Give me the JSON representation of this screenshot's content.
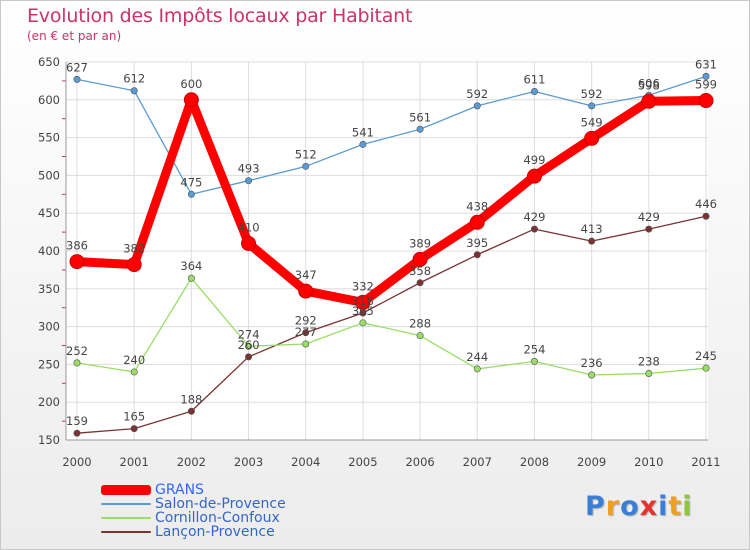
{
  "title": "Evolution des Impôts locaux par Habitant",
  "subtitle": "(en € et par an)",
  "logo_text": "Proxiti",
  "colors": {
    "title": "#cc3366",
    "grid": "#dddddd",
    "axis": "#999999",
    "label": "#444444",
    "logo": [
      "#3a7fd5",
      "#f0a020",
      "#3a7fd5",
      "#e83030",
      "#3a7fd5",
      "#f0a020",
      "#8cc63f"
    ]
  },
  "chart_data": {
    "type": "line",
    "title": "Evolution des Impôts locaux par Habitant",
    "subtitle": "(en € et par an)",
    "xlabel": "",
    "ylabel": "",
    "ylim": [
      150,
      650
    ],
    "yticks": [
      "150",
      "200",
      "250",
      "300",
      "350",
      "400",
      "450",
      "500",
      "550",
      "600",
      "650"
    ],
    "categories": [
      "2000",
      "2001",
      "2002",
      "2003",
      "2004",
      "2005",
      "2006",
      "2007",
      "2008",
      "2009",
      "2010",
      "2011"
    ],
    "grid": true,
    "legend_position": "bottom-left",
    "series": [
      {
        "name": "GRANS",
        "color": "#ff0000",
        "values": [
          386,
          382,
          600,
          410,
          347,
          332,
          389,
          438,
          499,
          549,
          598,
          599
        ],
        "labels": [
          "386",
          "382",
          "600",
          "410",
          "347",
          "332",
          "389",
          "438",
          "499",
          "549",
          "598",
          "599"
        ]
      },
      {
        "name": "Salon-de-Provence",
        "color": "#5b9bd5",
        "values": [
          627,
          612,
          475,
          493,
          512,
          541,
          561,
          592,
          611,
          592,
          606,
          631
        ],
        "labels": [
          "627",
          "612",
          "475",
          "493",
          "512",
          "541",
          "561",
          "592",
          "611",
          "592",
          "606",
          "631"
        ]
      },
      {
        "name": "Cornillon-Confoux",
        "color": "#99dd66",
        "values": [
          252,
          240,
          364,
          274,
          277,
          305,
          288,
          244,
          254,
          236,
          238,
          245
        ],
        "labels": [
          "252",
          "240",
          "364",
          "274",
          "277",
          "305",
          "288",
          "244",
          "254",
          "236",
          "238",
          "245"
        ]
      },
      {
        "name": "Lançon-Provence",
        "color": "#7a3333",
        "values": [
          159,
          165,
          188,
          260,
          292,
          318,
          358,
          395,
          429,
          413,
          429,
          446
        ],
        "labels": [
          "159",
          "165",
          "188",
          "260",
          "292",
          "318",
          "358",
          "395",
          "429",
          "413",
          "429",
          "446"
        ]
      }
    ]
  }
}
